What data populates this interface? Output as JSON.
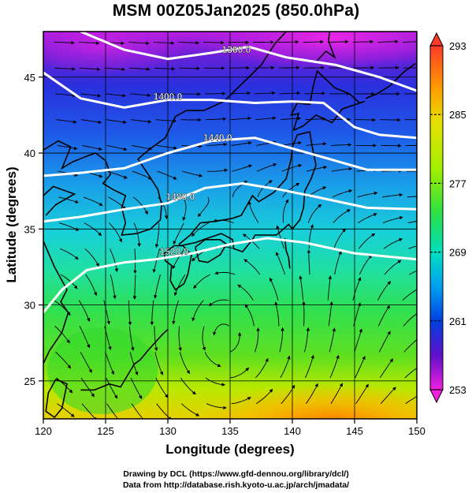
{
  "title": "MSM 00Z05Jan2025 (850.0hPa)",
  "xlabel": "Longitude (degrees)",
  "ylabel": "Latitude  (degrees)",
  "credits": {
    "line1": "Drawing by DCL (https://www.gfd-dennou.org/library/dcl/)",
    "line2": "Data from http://database.rish.kyoto-u.ac.jp/arch/jmadata/"
  },
  "x_ticks": [
    "120",
    "125",
    "130",
    "135",
    "140",
    "145",
    "150"
  ],
  "y_ticks": [
    "25",
    "30",
    "35",
    "40",
    "45"
  ],
  "colorbar": {
    "ticks": [
      "293",
      "285",
      "277",
      "269",
      "261",
      "253"
    ],
    "colors": [
      "#ff4040",
      "#ff9a00",
      "#c8f000",
      "#40e040",
      "#00d8c0",
      "#0098f0",
      "#0030e0",
      "#6000c0",
      "#e020e0"
    ]
  },
  "contours": [
    {
      "label": "1360.0"
    },
    {
      "label": "1400.0"
    },
    {
      "label": "1440.0"
    },
    {
      "label": "1480.0"
    },
    {
      "label": "1520.0"
    }
  ],
  "map_extent": {
    "lon": [
      120,
      150
    ],
    "lat": [
      22.5,
      48
    ]
  },
  "colors": {
    "warm": "#ff6a00",
    "cold": "#e000e0",
    "contour": "#ffffff",
    "coast": "#000000"
  }
}
